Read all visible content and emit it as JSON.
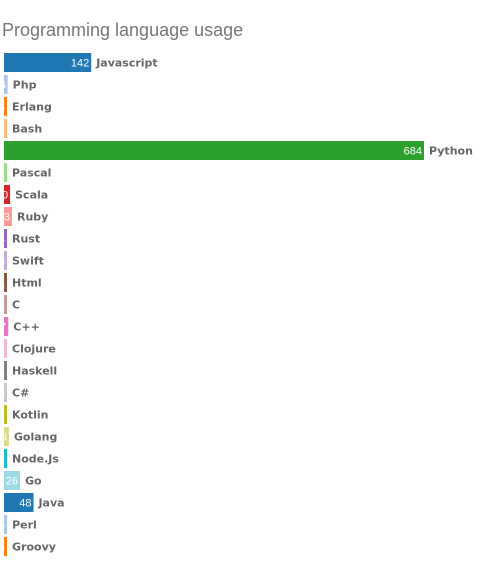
{
  "chart_data": {
    "type": "bar",
    "orientation": "horizontal",
    "title": "Programming language usage",
    "categories": [
      "Javascript",
      "Php",
      "Erlang",
      "Bash",
      "Python",
      "Pascal",
      "Scala",
      "Ruby",
      "Rust",
      "Swift",
      "Html",
      "C",
      "C++",
      "Clojure",
      "Haskell",
      "C#",
      "Kotlin",
      "Golang",
      "Node.Js",
      "Go",
      "Java",
      "Perl",
      "Groovy"
    ],
    "values": [
      142,
      6,
      3,
      1,
      684,
      1,
      10,
      13,
      4,
      3,
      1,
      4,
      7,
      1,
      1,
      3,
      1,
      8,
      2,
      26,
      48,
      5,
      4
    ],
    "value_labels": [
      "142",
      "6",
      "3",
      "1",
      "684",
      "1",
      "10",
      "13",
      "4",
      "3",
      "1",
      "4",
      "7",
      "1",
      "1",
      "3",
      "1",
      "8",
      "2",
      "26",
      "48",
      "5",
      "4"
    ],
    "colors": [
      "#1f77b4",
      "#aec7e8",
      "#ff7f0e",
      "#ffbb78",
      "#2ca02c",
      "#98df8a",
      "#d62728",
      "#ff9896",
      "#9467bd",
      "#c5b0d5",
      "#8c564b",
      "#c49c94",
      "#e377c2",
      "#f7b6d2",
      "#7f7f7f",
      "#c7c7c7",
      "#bcbd22",
      "#dbdb8d",
      "#17becf",
      "#9edae5",
      "#1f77b4",
      "#aec7e8",
      "#ff7f0e"
    ],
    "xlim": [
      0,
      684
    ],
    "grid": false,
    "legend": "none",
    "axes_visible": false
  }
}
